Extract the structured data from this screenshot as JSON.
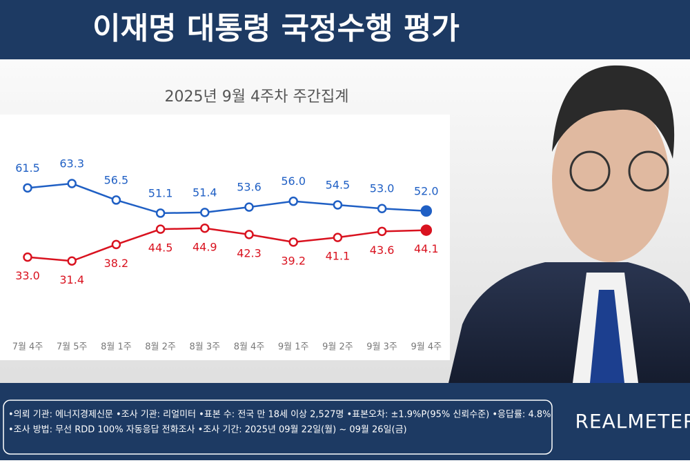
{
  "chart_data": {
    "type": "line",
    "title": "이재명 대통령 국정수행 평가",
    "subtitle": "2025년 9월 4주차 주간집계",
    "categories": [
      "7월 4주",
      "7월 5주",
      "8월 1주",
      "8월 2주",
      "8월 3주",
      "8월 4주",
      "9월 1주",
      "9월 2주",
      "9월 3주",
      "9월 4주"
    ],
    "series": [
      {
        "color": "#1f5fc4",
        "values": [
          61.5,
          63.3,
          56.5,
          51.1,
          51.4,
          53.6,
          56.0,
          54.5,
          53.0,
          52.0
        ],
        "value_labels": [
          "61.5",
          "63.3",
          "56.5",
          "51.1",
          "51.4",
          "53.6",
          "56.0",
          "54.5",
          "53.0",
          "52.0"
        ]
      },
      {
        "color": "#d9121f",
        "values": [
          33.0,
          31.4,
          38.2,
          44.5,
          44.9,
          42.3,
          39.2,
          41.1,
          43.6,
          44.1
        ],
        "value_labels": [
          "33.0",
          "31.4",
          "38.2",
          "44.5",
          "44.9",
          "42.3",
          "39.2",
          "41.1",
          "43.6",
          "44.1"
        ]
      }
    ]
  },
  "footer": {
    "lines": [
      "•의뢰 기관: 에너지경제신문 •조사 기관: 리얼미터 •표본 수: 전국 만 18세 이상 2,527명 •표본오차: ±1.9%P(95% 신뢰수준) •응답률: 4.8%",
      "•조사 방법: 무선 RDD 100% 자동응답 전화조사 •조사 기간: 2025년 09월 22일(월) ~ 09월 26일(금)"
    ]
  },
  "logo": "REALMETER"
}
